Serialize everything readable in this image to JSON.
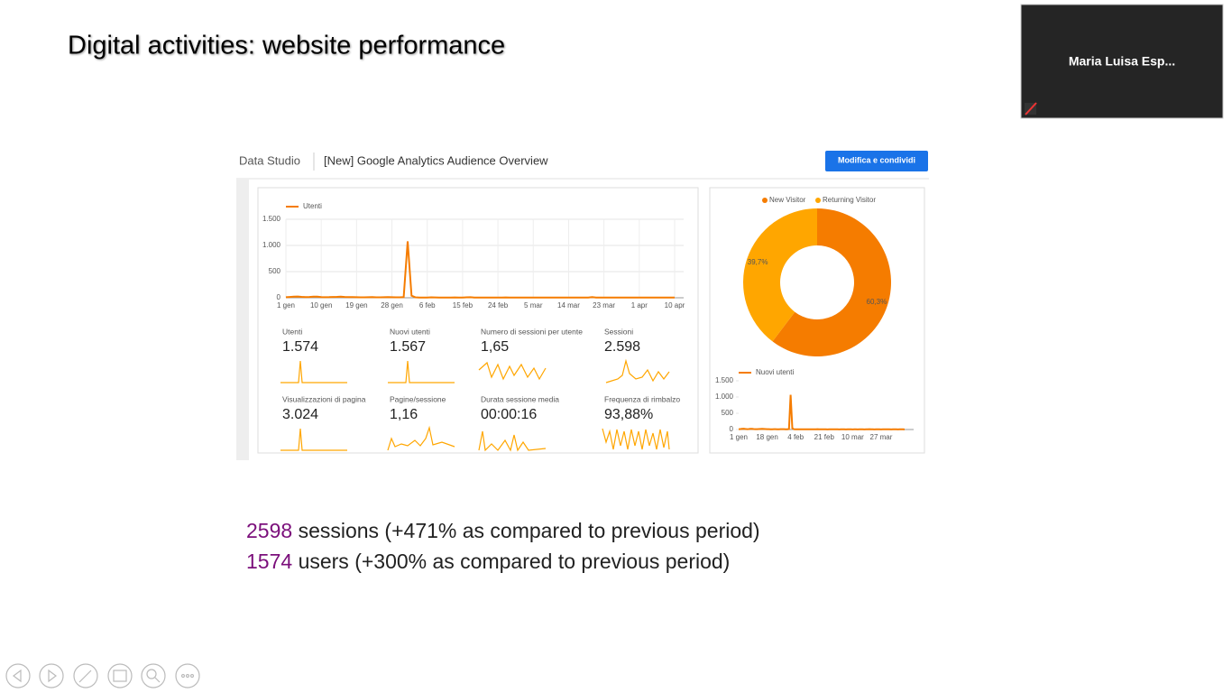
{
  "slide": {
    "title": "Digital activities: website performance",
    "summary": [
      {
        "number": 2598,
        "text": "sessions (+471% as compared to previous period)"
      },
      {
        "number": 1574,
        "text": "users (+300% as compared to previous period)"
      }
    ]
  },
  "video": {
    "participant": "Maria Luisa Esp..."
  },
  "dashboard": {
    "app": "Data Studio",
    "report": "[New] Google Analytics Audience Overview",
    "button": "Modifica e condividi",
    "kpis": [
      {
        "label": "Utenti",
        "value": "1.574"
      },
      {
        "label": "Nuovi utenti",
        "value": "1.567"
      },
      {
        "label": "Numero di sessioni per utente",
        "value": "1,65"
      },
      {
        "label": "Sessioni",
        "value": "2.598"
      },
      {
        "label": "Visualizzazioni di pagina",
        "value": "3.024"
      },
      {
        "label": "Pagine/sessione",
        "value": "1,16"
      },
      {
        "label": "Durata sessione media",
        "value": "00:00:16"
      },
      {
        "label": "Frequenza di rimbalzo",
        "value": "93,88%"
      }
    ]
  },
  "chart_data": [
    {
      "type": "line",
      "categories": [
        "1 gen",
        null,
        null,
        null,
        null,
        null,
        null,
        null,
        null,
        "10 gen",
        null,
        null,
        null,
        null,
        null,
        null,
        null,
        null,
        "19 gen",
        null,
        null,
        null,
        null,
        null,
        null,
        null,
        null,
        "28 gen",
        null,
        null,
        null,
        null,
        null,
        null,
        null,
        null,
        "6 feb",
        null,
        null,
        null,
        null,
        null,
        null,
        null,
        null,
        "15 feb",
        null,
        null,
        null,
        null,
        null,
        null,
        null,
        null,
        "24 feb",
        null,
        null,
        null,
        null,
        null,
        null,
        null,
        null,
        "5 mar",
        null,
        null,
        null,
        null,
        null,
        null,
        null,
        null,
        "14 mar",
        null,
        null,
        null,
        null,
        null,
        null,
        null,
        null,
        "23 mar",
        null,
        null,
        null,
        null,
        null,
        null,
        null,
        null,
        "1 apr",
        null,
        null,
        null,
        null,
        null,
        null,
        null,
        null,
        "10 apr"
      ],
      "series": [
        {
          "name": "Utenti",
          "color": "#f57c00",
          "values": [
            10,
            15,
            20,
            25,
            18,
            12,
            15,
            22,
            20,
            14,
            10,
            12,
            15,
            18,
            20,
            16,
            14,
            12,
            10,
            8,
            8,
            10,
            12,
            9,
            8,
            10,
            12,
            10,
            9,
            8,
            14,
            1080,
            40,
            8,
            6,
            5,
            6,
            8,
            7,
            6,
            5,
            6,
            5,
            7,
            6,
            5,
            8,
            10,
            6,
            5,
            5,
            6,
            5,
            4,
            6,
            5,
            7,
            6,
            5,
            5,
            4,
            5,
            6,
            5,
            4,
            5,
            6,
            5,
            4,
            5,
            5,
            4,
            5,
            6,
            5,
            4,
            5,
            6,
            12,
            6,
            5,
            4,
            5,
            6,
            5,
            4,
            5,
            5,
            6,
            5,
            5,
            4,
            5,
            6,
            5,
            4,
            5,
            6,
            5,
            4
          ]
        }
      ],
      "ylim": [
        0,
        1500
      ],
      "yticks": [
        0,
        500,
        {
          "value": 1000,
          "label": "1.000"
        },
        {
          "value": 1500,
          "label": "1.500"
        }
      ],
      "grid": true
    },
    {
      "type": "pie",
      "categories": [
        "New Visitor",
        "Returning Visitor"
      ],
      "values": [
        60.3,
        39.7
      ],
      "value_labels": [
        "60,3%",
        "39,7%"
      ],
      "colors": [
        "#f57c00",
        "#ffa600"
      ]
    },
    {
      "type": "line",
      "categories": [
        "1 gen",
        null,
        null,
        null,
        null,
        null,
        null,
        null,
        null,
        null,
        null,
        null,
        null,
        null,
        null,
        null,
        null,
        "18 gen",
        null,
        null,
        null,
        null,
        null,
        null,
        null,
        null,
        null,
        null,
        null,
        null,
        null,
        null,
        null,
        null,
        "4 feb",
        null,
        null,
        null,
        null,
        null,
        null,
        null,
        null,
        null,
        null,
        null,
        null,
        null,
        null,
        null,
        null,
        "21 feb",
        null,
        null,
        null,
        null,
        null,
        null,
        null,
        null,
        null,
        null,
        null,
        null,
        null,
        null,
        null,
        null,
        "10 mar",
        null,
        null,
        null,
        null,
        null,
        null,
        null,
        null,
        null,
        null,
        null,
        null,
        null,
        null,
        null,
        null,
        "27 mar",
        null,
        null,
        null,
        null,
        null,
        null,
        null,
        null,
        null,
        null,
        null,
        null,
        null,
        null
      ],
      "series": [
        {
          "name": "Nuovi utenti",
          "color": "#f57c00",
          "values": [
            10,
            14,
            20,
            24,
            18,
            12,
            14,
            22,
            20,
            14,
            10,
            12,
            15,
            18,
            19,
            16,
            14,
            12,
            10,
            8,
            8,
            10,
            12,
            9,
            8,
            10,
            12,
            10,
            9,
            8,
            14,
            1070,
            40,
            8,
            6,
            5,
            6,
            8,
            7,
            6,
            5,
            6,
            5,
            7,
            6,
            5,
            8,
            10,
            6,
            5,
            5,
            6,
            5,
            4,
            6,
            5,
            7,
            6,
            5,
            5,
            4,
            5,
            6,
            5,
            4,
            5,
            6,
            5,
            4,
            5,
            5,
            4,
            5,
            6,
            5,
            4,
            5,
            6,
            12,
            6,
            5,
            4,
            5,
            6,
            5,
            4,
            5,
            5,
            6,
            5,
            5,
            4,
            5,
            6,
            5,
            4,
            5,
            6,
            5,
            4
          ]
        }
      ],
      "ylim": [
        0,
        1500
      ],
      "yticks": [
        0,
        500,
        {
          "value": 1000,
          "label": "1.000"
        },
        {
          "value": 1500,
          "label": "1.500"
        }
      ],
      "grid": false
    }
  ]
}
